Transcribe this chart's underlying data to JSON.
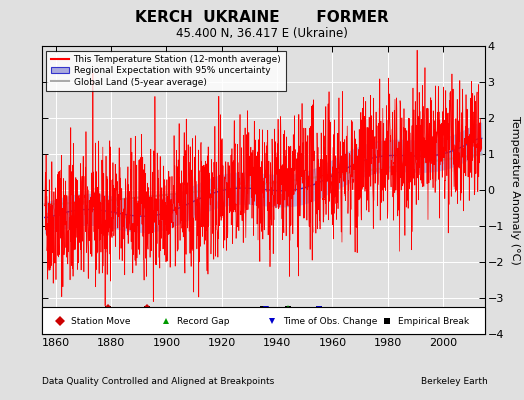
{
  "title": "KERCH  UKRAINE       FORMER",
  "subtitle": "45.400 N, 36.417 E (Ukraine)",
  "xlabel_note": "Data Quality Controlled and Aligned at Breakpoints",
  "xlabel_right": "Berkeley Earth",
  "ylabel": "Temperature Anomaly (°C)",
  "ylim": [
    -4,
    4
  ],
  "xlim": [
    1855,
    2015
  ],
  "xticks": [
    1860,
    1880,
    1900,
    1920,
    1940,
    1960,
    1980,
    2000
  ],
  "yticks": [
    -4,
    -3,
    -2,
    -1,
    0,
    1,
    2,
    3,
    4
  ],
  "bg_color": "#e0e0e0",
  "plot_bg_color": "#e0e0e0",
  "station_color": "#ff0000",
  "regional_color": "#3333cc",
  "regional_fill_color": "#aaaadd",
  "global_color": "#aaaaaa",
  "grid_color": "#ffffff",
  "seed": 42,
  "start_year": 1856,
  "end_year": 2013,
  "station_moves": [
    1879,
    1893
  ],
  "record_gaps": [
    1944
  ],
  "obs_changes": [
    1936,
    1955
  ],
  "empirical_breaks": [
    1879,
    1893,
    1935,
    1944,
    1955
  ],
  "marker_y": -3.3
}
